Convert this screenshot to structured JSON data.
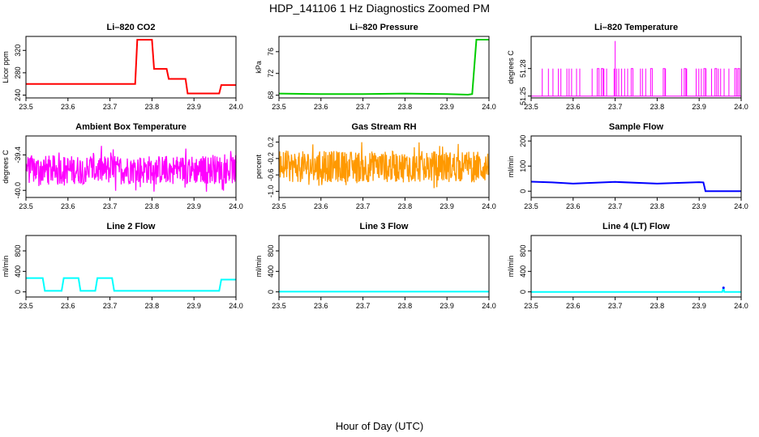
{
  "figure": {
    "title": "HDP_141106  1 Hz Diagnostics Zoomed PM",
    "xlabel": "Hour of Day (UTC)"
  },
  "chart_data": [
    {
      "type": "line",
      "title": "Li–820 CO2",
      "ylabel": "Licor ppm",
      "color": "#ff0000",
      "xlim": [
        23.5,
        24.0
      ],
      "ylim": [
        235,
        345
      ],
      "xticks": [
        "23.5",
        "23.6",
        "23.7",
        "23.8",
        "23.9",
        "24.0"
      ],
      "yticks": [
        "240",
        "280",
        "320"
      ],
      "series": [
        {
          "x": [
            23.5,
            23.76,
            23.765,
            23.8,
            23.805,
            23.835,
            23.84,
            23.88,
            23.885,
            23.96,
            23.965,
            24.0
          ],
          "y": [
            260,
            260,
            339,
            339,
            287,
            287,
            269,
            269,
            243,
            243,
            258,
            258
          ]
        }
      ]
    },
    {
      "type": "line",
      "title": "Li–820 Pressure",
      "ylabel": "kPa",
      "color": "#00cc00",
      "xlim": [
        23.5,
        24.0
      ],
      "ylim": [
        67.5,
        78.8
      ],
      "xticks": [
        "23.5",
        "23.6",
        "23.7",
        "23.8",
        "23.9",
        "24.0"
      ],
      "yticks": [
        "68",
        "72",
        "76"
      ],
      "series": [
        {
          "x": [
            23.5,
            23.6,
            23.7,
            23.8,
            23.9,
            23.95,
            23.96,
            23.97,
            24.0
          ],
          "y": [
            68.3,
            68.2,
            68.2,
            68.3,
            68.2,
            68.1,
            68.2,
            78.2,
            78.2
          ]
        }
      ]
    },
    {
      "type": "line",
      "title": "Li–820 Temperature",
      "ylabel": "degrees C",
      "color": "#ff00ff",
      "xlim": [
        23.5,
        24.0
      ],
      "ylim": [
        51.248,
        51.315
      ],
      "xticks": [
        "23.5",
        "23.6",
        "23.7",
        "23.8",
        "23.9",
        "24.0"
      ],
      "yticks": [
        "51.25",
        "51.28"
      ],
      "series": [
        {
          "baseline": 51.25,
          "spike": 51.28,
          "peak": {
            "x": 23.7,
            "y": 51.31
          }
        }
      ]
    },
    {
      "type": "line",
      "title": "Ambient Box Temperature",
      "ylabel": "degrees C",
      "color": "#ff00ff",
      "xlim": [
        23.5,
        24.0
      ],
      "ylim": [
        -40.12,
        -39.08
      ],
      "xticks": [
        "23.5",
        "23.6",
        "23.7",
        "23.8",
        "23.9",
        "24.0"
      ],
      "yticks": [
        "-40.0",
        "-39.4"
      ],
      "series": [
        {
          "low": -40.0,
          "high": -39.3
        }
      ]
    },
    {
      "type": "line",
      "title": "Gas Stream RH",
      "ylabel": "percent",
      "color": "#ff9900",
      "xlim": [
        23.5,
        24.0
      ],
      "ylim": [
        -1.15,
        0.35
      ],
      "xticks": [
        "23.5",
        "23.6",
        "23.7",
        "23.8",
        "23.9",
        "24.0"
      ],
      "yticks": [
        "-1.0",
        "-0.6",
        "-0.2",
        "0.2"
      ],
      "series": [
        {
          "low": -0.95,
          "high": 0.15
        }
      ]
    },
    {
      "type": "line",
      "title": "Sample Flow",
      "ylabel": "ml/min",
      "color": "#0000ff",
      "xlim": [
        23.5,
        24.0
      ],
      "ylim": [
        -25,
        220
      ],
      "xticks": [
        "23.5",
        "23.6",
        "23.7",
        "23.8",
        "23.9",
        "24.0"
      ],
      "yticks": [
        "0",
        "100",
        "200"
      ],
      "series": [
        {
          "x": [
            23.5,
            23.55,
            23.6,
            23.7,
            23.8,
            23.9,
            23.91,
            23.915,
            24.0
          ],
          "y": [
            38,
            35,
            30,
            37,
            30,
            36,
            35,
            0,
            0
          ]
        }
      ]
    },
    {
      "type": "line",
      "title": "Line 2 Flow",
      "ylabel": "ml/min",
      "color": "#00ffff",
      "xlim": [
        23.5,
        24.0
      ],
      "ylim": [
        -100,
        1100
      ],
      "xticks": [
        "23.5",
        "23.6",
        "23.7",
        "23.8",
        "23.9",
        "24.0"
      ],
      "yticks": [
        "0",
        "400",
        "800"
      ],
      "series": [
        {
          "x": [
            23.5,
            23.54,
            23.545,
            23.585,
            23.59,
            23.625,
            23.63,
            23.665,
            23.67,
            23.705,
            23.71,
            23.96,
            23.965,
            24.0
          ],
          "y": [
            270,
            270,
            20,
            20,
            270,
            270,
            20,
            20,
            270,
            270,
            20,
            20,
            240,
            240
          ]
        }
      ]
    },
    {
      "type": "line",
      "title": "Line 3 Flow",
      "ylabel": "ml/min",
      "color": "#00ffff",
      "xlim": [
        23.5,
        24.0
      ],
      "ylim": [
        -100,
        1100
      ],
      "xticks": [
        "23.5",
        "23.6",
        "23.7",
        "23.8",
        "23.9",
        "24.0"
      ],
      "yticks": [
        "0",
        "400",
        "800"
      ],
      "series": [
        {
          "x": [
            23.5,
            24.0
          ],
          "y": [
            5,
            5
          ]
        }
      ]
    },
    {
      "type": "line",
      "title": "Line 4 (LT) Flow",
      "ylabel": "ml/min",
      "color": "#00ffff",
      "xlim": [
        23.5,
        24.0
      ],
      "ylim": [
        -100,
        1100
      ],
      "xticks": [
        "23.5",
        "23.6",
        "23.7",
        "23.8",
        "23.9",
        "24.0"
      ],
      "yticks": [
        "0",
        "400",
        "800"
      ],
      "series": [
        {
          "x": [
            23.5,
            23.955,
            23.958,
            23.96,
            24.0
          ],
          "y": [
            0,
            0,
            80,
            0,
            0
          ]
        },
        {
          "x": [
            23.958
          ],
          "y": [
            80
          ],
          "color": "#0000ff"
        }
      ]
    }
  ]
}
